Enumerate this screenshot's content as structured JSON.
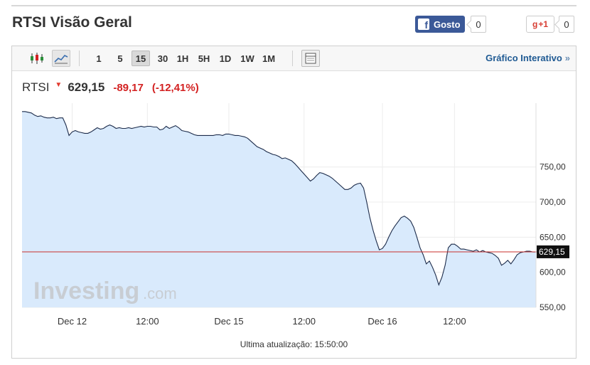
{
  "header": {
    "title": "RTSI Visão Geral",
    "facebook_label": "Gosto",
    "facebook_count": "0",
    "gplus_label": "+1",
    "gplus_count": "0"
  },
  "toolbar": {
    "timeframes": [
      "1",
      "5",
      "15",
      "30",
      "1H",
      "5H",
      "1D",
      "1W",
      "1M"
    ],
    "active_timeframe": "15",
    "interactive_link": "Gráfico Interativo",
    "interactive_chevron": "»"
  },
  "quote": {
    "symbol": "RTSI",
    "price": "629,15",
    "change": "-89,17",
    "change_pct": "(-12,41%)",
    "direction": "down"
  },
  "footer": {
    "last_update": "Ultima atualização: 15:50:00"
  },
  "watermark": "Investing.com",
  "colors": {
    "line": "#1c2b4a",
    "area": "#d9eafc",
    "last_price_line": "#c9302c",
    "down": "#d32222",
    "brand_blue": "#1f5a93"
  },
  "chart_data": {
    "type": "area",
    "x_tick_labels": [
      "Dec 12",
      "12:00",
      "Dec 15",
      "12:00",
      "Dec 16",
      "12:00"
    ],
    "x_tick_index": [
      16,
      40,
      66,
      90,
      115,
      138
    ],
    "y_ticks": [
      550,
      600,
      650,
      700,
      750
    ],
    "y_tick_labels": [
      "550,00",
      "600,00",
      "650,00",
      "700,00",
      "750,00"
    ],
    "ylim": [
      550,
      841
    ],
    "last_value": 629.15,
    "last_value_label": "629,15",
    "grid": true,
    "values": [
      829,
      829,
      828,
      827,
      824,
      822,
      823,
      821,
      820,
      820,
      821,
      819,
      820,
      820,
      810,
      795,
      800,
      802,
      800,
      799,
      798,
      798,
      800,
      803,
      806,
      804,
      805,
      808,
      810,
      808,
      805,
      806,
      805,
      805,
      806,
      805,
      806,
      807,
      808,
      807,
      808,
      808,
      807,
      807,
      803,
      804,
      808,
      805,
      807,
      809,
      806,
      802,
      801,
      800,
      798,
      796,
      795,
      795,
      795,
      795,
      795,
      795,
      796,
      796,
      795,
      797,
      797,
      796,
      795,
      795,
      794,
      793,
      791,
      787,
      783,
      779,
      777,
      775,
      772,
      770,
      768,
      767,
      765,
      762,
      763,
      761,
      759,
      755,
      750,
      745,
      740,
      735,
      730,
      733,
      738,
      742,
      741,
      739,
      737,
      734,
      730,
      726,
      722,
      718,
      718,
      720,
      724,
      726,
      727,
      720,
      700,
      678,
      660,
      645,
      632,
      634,
      640,
      650,
      659,
      666,
      672,
      678,
      680,
      677,
      673,
      664,
      650,
      635,
      625,
      612,
      616,
      607,
      596,
      582,
      593,
      610,
      635,
      640,
      640,
      637,
      633,
      633,
      632,
      631,
      630,
      632,
      629,
      631,
      629,
      628,
      627,
      624,
      620,
      610,
      613,
      617,
      612,
      618,
      625,
      628,
      629,
      630,
      630,
      629,
      629
    ]
  }
}
